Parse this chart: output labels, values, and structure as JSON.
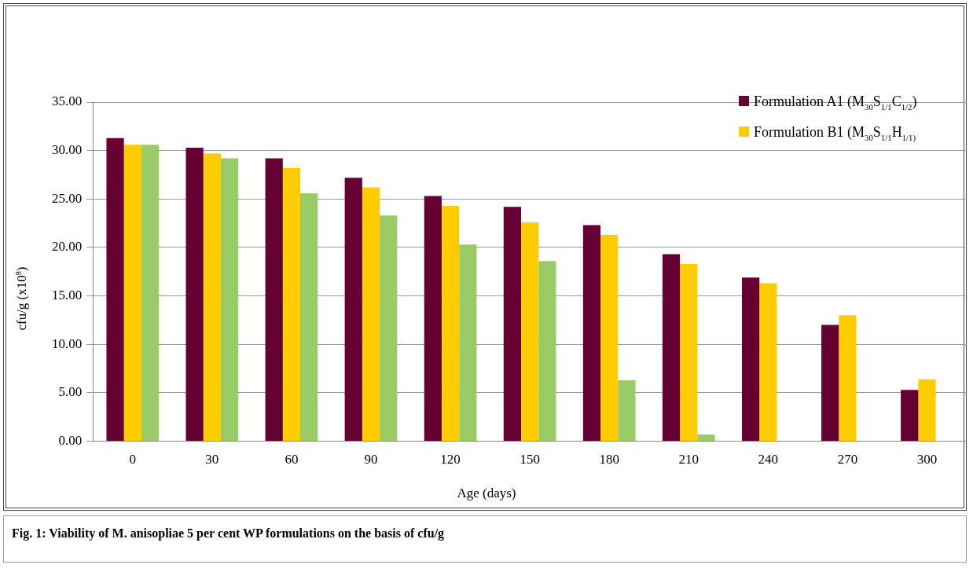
{
  "chart_data": {
    "type": "bar",
    "title": "Fig. 1: Viability of M. anisopliae 5 per cent WP formulations on the basis of cfu/g",
    "xlabel": "Age (days)",
    "ylabel": "cfu/g (x10$^{8}$)",
    "categories": [
      "0",
      "30",
      "60",
      "90",
      "120",
      "150",
      "180",
      "210",
      "240",
      "270",
      "300"
    ],
    "series": [
      {
        "name": "Formulation A1 (M$_{30}$S$_{1/1}$C$_{1/2}$)",
        "color": "#660033",
        "values": [
          31.3,
          30.3,
          29.2,
          27.2,
          25.3,
          24.2,
          22.3,
          19.3,
          16.9,
          12.0,
          5.3
        ]
      },
      {
        "name": "Formulation B1 (M$_{30}$S$_{1/1}$H$_{1/1)}$",
        "color": "#ffcc00",
        "values": [
          30.6,
          29.7,
          28.2,
          26.2,
          24.3,
          22.6,
          21.3,
          18.3,
          16.3,
          13.0,
          6.4
        ]
      },
      {
        "color": "#99cc66",
        "values": [
          30.6,
          29.2,
          25.6,
          23.3,
          20.3,
          18.6,
          6.3,
          0.7,
          null,
          null,
          null
        ]
      }
    ],
    "ylim": [
      0,
      35
    ],
    "yticks": [
      {
        "value": 0,
        "label": "0.00"
      },
      {
        "value": 5,
        "label": "5.00"
      },
      {
        "value": 10,
        "label": "10.00"
      },
      {
        "value": 15,
        "label": "15.00"
      },
      {
        "value": 20,
        "label": "20.00"
      },
      {
        "value": 25,
        "label": "25.00"
      },
      {
        "value": 30,
        "label": "30.00"
      },
      {
        "value": 35,
        "label": "35.00"
      }
    ],
    "grid": "y",
    "legend": "top right"
  }
}
